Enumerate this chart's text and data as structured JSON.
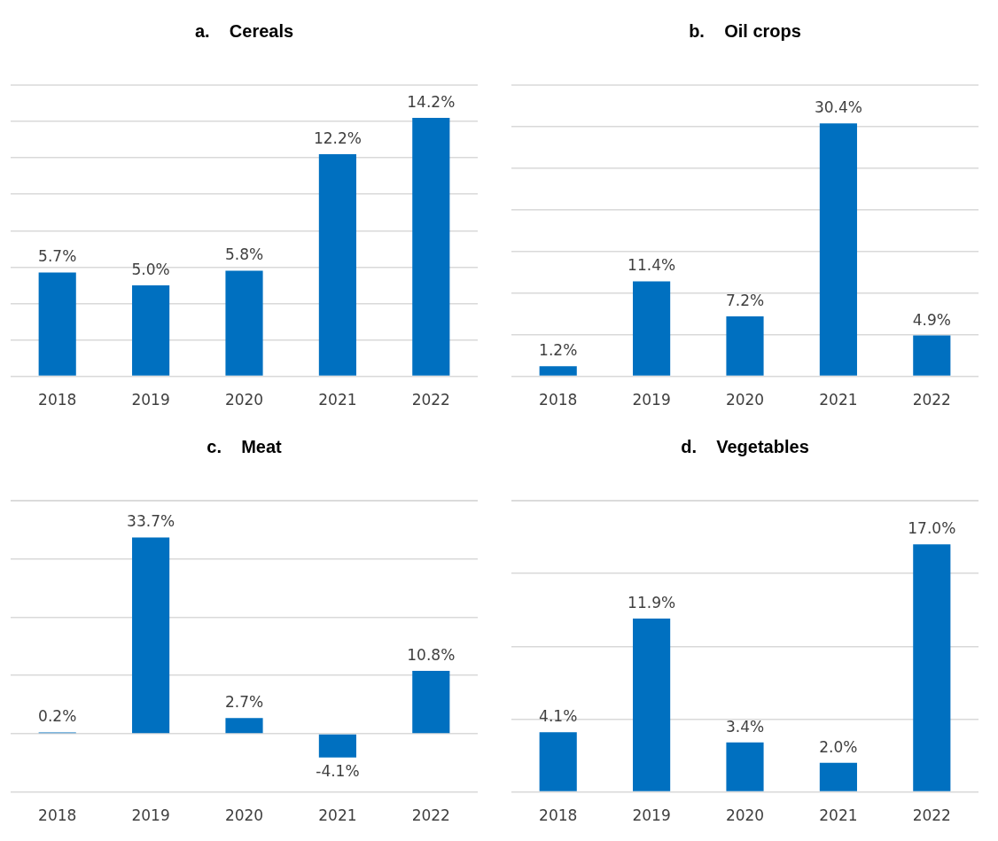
{
  "chart_data": [
    {
      "type": "bar",
      "title": "a.    Cereals",
      "categories": [
        "2018",
        "2019",
        "2020",
        "2021",
        "2022"
      ],
      "values": [
        5.7,
        5.0,
        5.8,
        12.2,
        14.2
      ],
      "color": "#0070c0",
      "ylim": [
        0,
        16
      ],
      "yticks": [
        {
          "value": 0,
          "label": null
        },
        {
          "value": 2,
          "label": null
        },
        {
          "value": 4,
          "label": null
        },
        {
          "value": 6,
          "label": null
        },
        {
          "value": 8,
          "label": null
        },
        {
          "value": 10,
          "label": null
        },
        {
          "value": 12,
          "label": null
        },
        {
          "value": 14,
          "label": null
        }
      ],
      "value_labels": [
        "5.7%",
        "5.0%",
        "5.8%",
        "12.2%",
        "14.2%"
      ],
      "grid": "y",
      "tick_labels": "x",
      "legend": false
    },
    {
      "type": "bar",
      "title": "b.    Oil crops",
      "categories": [
        "2018",
        "2019",
        "2020",
        "2021",
        "2022"
      ],
      "values": [
        1.2,
        11.4,
        7.2,
        30.4,
        4.9
      ],
      "color": "#0070c0",
      "ylim": [
        0,
        35
      ],
      "yticks": [
        {
          "value": 0,
          "label": null
        },
        {
          "value": 5,
          "label": null
        },
        {
          "value": 10,
          "label": null
        },
        {
          "value": 15,
          "label": null
        },
        {
          "value": 20,
          "label": null
        },
        {
          "value": 25,
          "label": null
        },
        {
          "value": 30,
          "label": null
        }
      ],
      "value_labels": [
        "1.2%",
        "11.4%",
        "7.2%",
        "30.4%",
        "4.9%"
      ],
      "grid": "y",
      "tick_labels": "x",
      "legend": false
    },
    {
      "type": "bar",
      "title": "c.    Meat",
      "categories": [
        "2018",
        "2019",
        "2020",
        "2021",
        "2022"
      ],
      "values": [
        0.2,
        33.7,
        2.7,
        -4.1,
        10.8
      ],
      "color": "#0070c0",
      "ylim": [
        -10,
        40
      ],
      "yticks": [
        {
          "value": -10,
          "label": null
        },
        {
          "value": 0,
          "label": null
        },
        {
          "value": 10,
          "label": null
        },
        {
          "value": 20,
          "label": null
        },
        {
          "value": 30,
          "label": null
        },
        {
          "value": 40,
          "label": null
        }
      ],
      "value_labels": [
        "0.2%",
        "33.7%",
        "2.7%",
        "-4.1%",
        "10.8%"
      ],
      "grid": "y",
      "tick_labels": "x",
      "legend": false
    },
    {
      "type": "bar",
      "title": "d.    Vegetables",
      "categories": [
        "2018",
        "2019",
        "2020",
        "2021",
        "2022"
      ],
      "values": [
        4.1,
        11.9,
        3.4,
        2.0,
        17.0
      ],
      "color": "#0070c0",
      "ylim": [
        0,
        20
      ],
      "yticks": [
        {
          "value": 0,
          "label": null
        },
        {
          "value": 5,
          "label": null
        },
        {
          "value": 10,
          "label": null
        },
        {
          "value": 15,
          "label": null
        },
        {
          "value": 20,
          "label": null
        }
      ],
      "value_labels": [
        "4.1%",
        "11.9%",
        "3.4%",
        "2.0%",
        "17.0%"
      ],
      "grid": "y",
      "tick_labels": "x",
      "legend": false
    }
  ]
}
